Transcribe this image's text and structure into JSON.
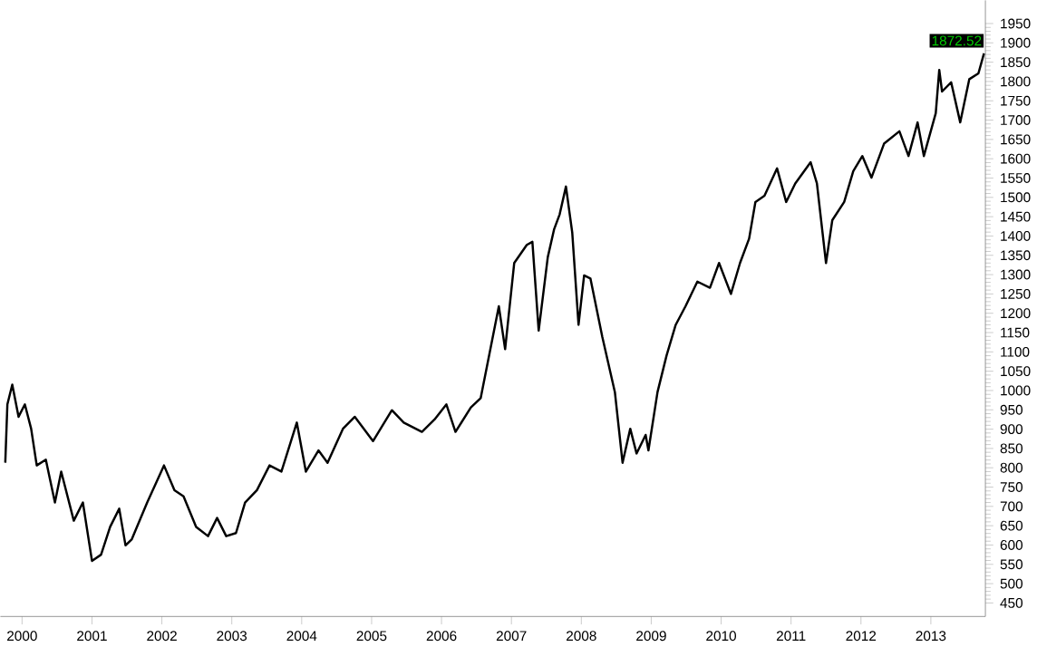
{
  "chart_data": {
    "type": "line",
    "color": "#000000",
    "x": [
      1999.76,
      1999.79,
      1999.86,
      1999.95,
      2000.04,
      2000.13,
      2000.21,
      2000.34,
      2000.47,
      2000.56,
      2000.74,
      2000.87,
      2001.0,
      2001.13,
      2001.26,
      2001.39,
      2001.48,
      2001.57,
      2001.79,
      2002.03,
      2002.18,
      2002.31,
      2002.49,
      2002.66,
      2002.79,
      2002.92,
      2003.06,
      2003.19,
      2003.36,
      2003.54,
      2003.71,
      2003.93,
      2004.06,
      2004.24,
      2004.37,
      2004.59,
      2004.76,
      2005.02,
      2005.29,
      2005.46,
      2005.72,
      2005.9,
      2006.07,
      2006.2,
      2006.42,
      2006.56,
      2006.69,
      2006.82,
      2006.91,
      2007.04,
      2007.22,
      2007.3,
      2007.39,
      2007.52,
      2007.61,
      2007.69,
      2007.78,
      2007.87,
      2007.96,
      2008.04,
      2008.13,
      2008.3,
      2008.48,
      2008.59,
      2008.7,
      2008.79,
      2008.92,
      2008.96,
      2009.09,
      2009.22,
      2009.35,
      2009.49,
      2009.66,
      2009.84,
      2009.97,
      2010.14,
      2010.27,
      2010.4,
      2010.49,
      2010.62,
      2010.8,
      2010.93,
      2011.06,
      2011.28,
      2011.37,
      2011.5,
      2011.59,
      2011.76,
      2011.89,
      2012.02,
      2012.15,
      2012.33,
      2012.55,
      2012.68,
      2012.81,
      2012.9,
      2013.07,
      2013.12,
      2013.16,
      2013.29,
      2013.42,
      2013.55,
      2013.68,
      2013.76
    ],
    "values": [
      813,
      964,
      1015,
      932,
      964,
      901,
      806,
      821,
      710,
      790,
      663,
      710,
      559,
      575,
      647,
      694,
      599,
      615,
      710,
      806,
      742,
      726,
      647,
      623,
      670,
      623,
      631,
      710,
      742,
      806,
      790,
      917,
      790,
      845,
      813,
      901,
      932,
      869,
      949,
      917,
      893,
      925,
      964,
      893,
      956,
      980,
      1099,
      1218,
      1107,
      1330,
      1377,
      1385,
      1155,
      1345,
      1417,
      1456,
      1528,
      1409,
      1170,
      1298,
      1290,
      1139,
      996,
      813,
      901,
      837,
      885,
      845,
      996,
      1091,
      1170,
      1218,
      1282,
      1266,
      1330,
      1250,
      1330,
      1393,
      1488,
      1504,
      1575,
      1488,
      1536,
      1591,
      1536,
      1330,
      1441,
      1488,
      1568,
      1607,
      1551,
      1639,
      1671,
      1607,
      1694,
      1607,
      1718,
      1830,
      1774,
      1798,
      1694,
      1806,
      1821,
      1873
    ],
    "xlim": [
      1999.69,
      2013.78
    ],
    "xticks": [
      2000,
      2001,
      2002,
      2003,
      2004,
      2005,
      2006,
      2007,
      2008,
      2009,
      2010,
      2011,
      2012,
      2013
    ],
    "ylim": [
      415,
      2010
    ],
    "yticks": [
      450,
      500,
      550,
      600,
      650,
      700,
      750,
      800,
      850,
      900,
      950,
      1000,
      1050,
      1100,
      1150,
      1200,
      1250,
      1300,
      1350,
      1400,
      1450,
      1500,
      1550,
      1600,
      1650,
      1700,
      1750,
      1800,
      1850,
      1900,
      1950
    ],
    "annotations": [
      {
        "text": "1872.52",
        "x": 2013.76,
        "y": 1872.52
      }
    ],
    "grid": false,
    "marker": "none",
    "line_style": "solid"
  }
}
